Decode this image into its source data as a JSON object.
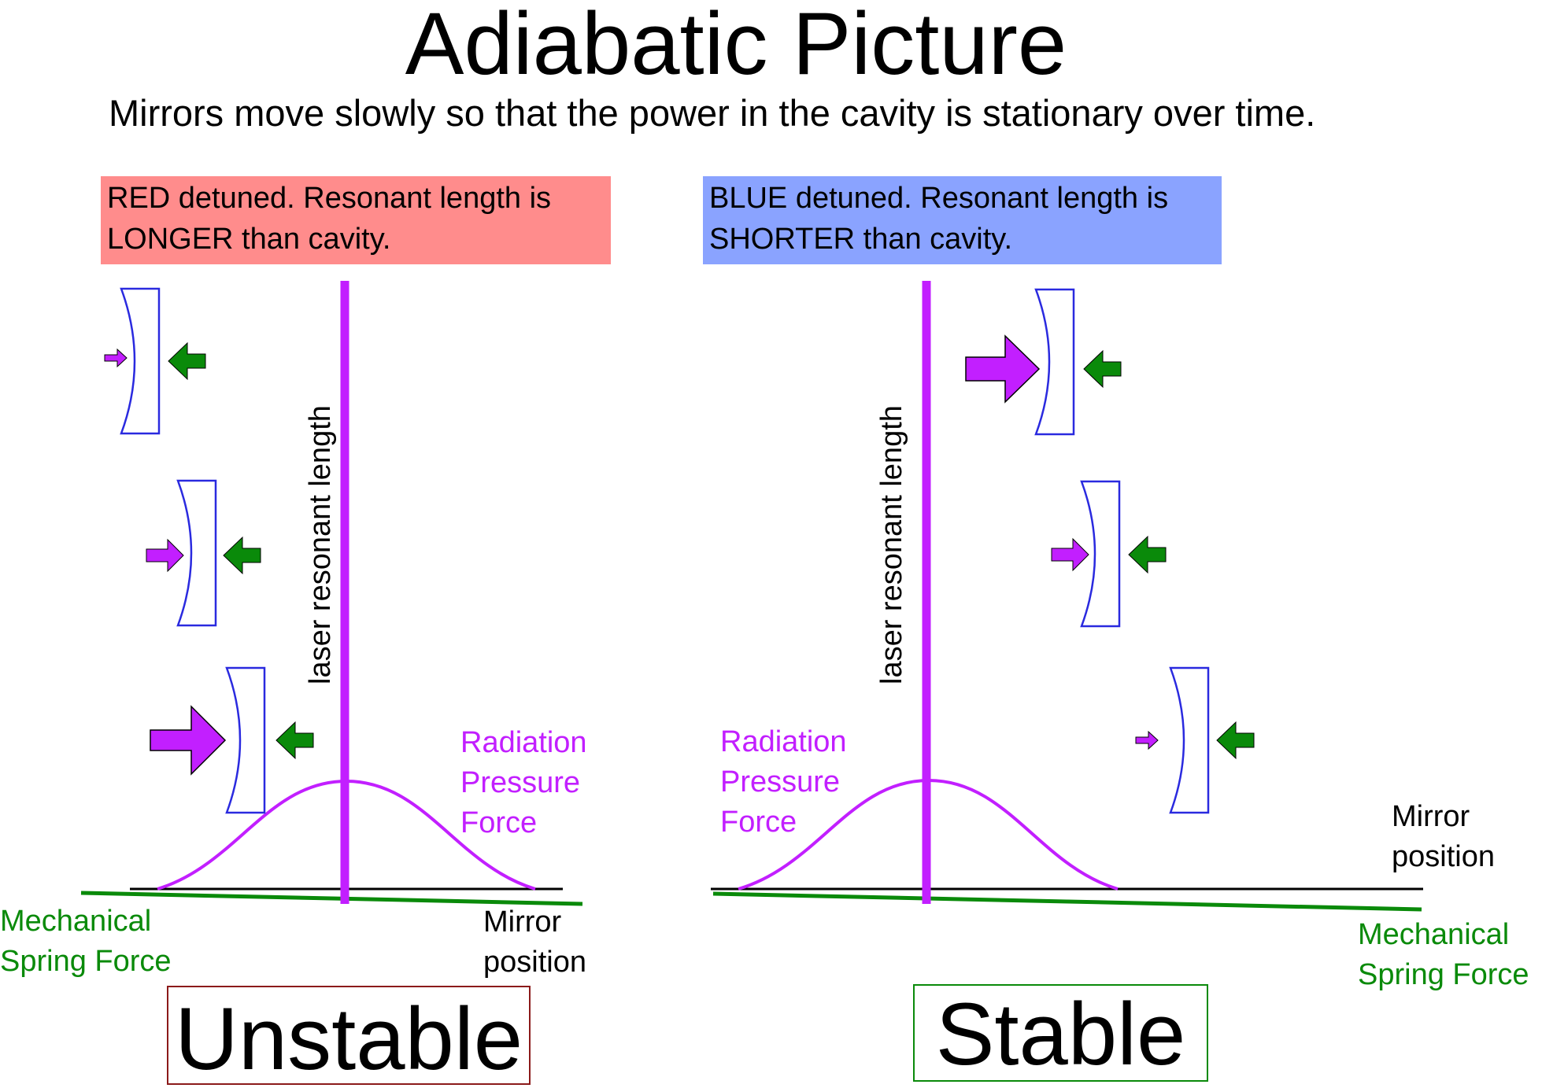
{
  "title": "Adiabatic Picture",
  "subtitle": "Mirrors move slowly so that the power in the cavity is stationary over time.",
  "left_panel": {
    "header_lines": [
      "RED detuned.  Resonant length is",
      "LONGER than cavity."
    ],
    "header_color": "#ff8c8c",
    "resonance_label": "laser resonant length",
    "radiation_label_lines": [
      "Radiation",
      "Pressure",
      "Force"
    ],
    "spring_label_lines": [
      "Mechanical",
      "Spring Force"
    ],
    "position_label_lines": [
      "Mirror",
      "position"
    ],
    "verdict": "Unstable",
    "verdict_border_color": "#8b1a1a"
  },
  "right_panel": {
    "header_lines": [
      "BLUE detuned.  Resonant length is",
      "SHORTER than cavity."
    ],
    "header_color": "#8aa3ff",
    "resonance_label": "laser resonant length",
    "radiation_label_lines": [
      "Radiation",
      "Pressure",
      "Force"
    ],
    "spring_label_lines": [
      "Mechanical",
      "Spring Force"
    ],
    "position_label_lines": [
      "Mirror",
      "position"
    ],
    "verdict": "Stable",
    "verdict_border_color": "#0a8a0a"
  },
  "colors": {
    "radiation": "#c21fff",
    "spring": "#0a8a0a",
    "mirror": "#2a2adf",
    "axis": "#000000"
  },
  "icons": [
    "concave-mirror-icon",
    "radiation-pressure-arrow-icon",
    "spring-force-arrow-icon"
  ]
}
